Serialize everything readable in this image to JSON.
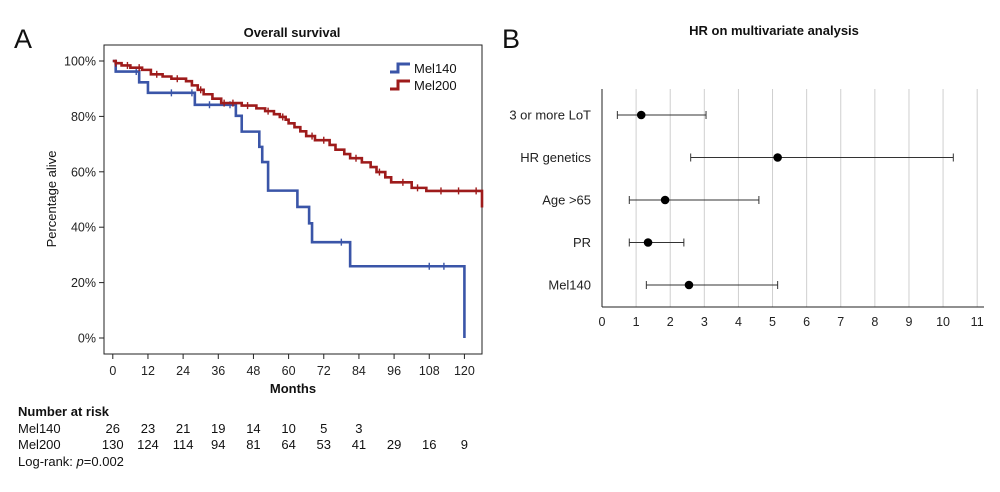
{
  "panels": {
    "a_letter": "A",
    "b_letter": "B"
  },
  "colors": {
    "mel140": "#3a55a8",
    "mel200": "#9e1b1b",
    "forest_point": "#000000",
    "grid": "#cfcfcf"
  },
  "chart_data": [
    {
      "type": "line",
      "step": true,
      "title": "Overall survival",
      "xlabel": "Months",
      "ylabel": "Percentage alive",
      "xlim": [
        -3,
        126
      ],
      "ylim": [
        0,
        100
      ],
      "xticks": [
        0,
        12,
        24,
        36,
        48,
        60,
        72,
        84,
        96,
        108,
        120
      ],
      "yticks": [
        0,
        20,
        40,
        60,
        80,
        100
      ],
      "ytick_labels": [
        "0%",
        "20%",
        "40%",
        "60%",
        "80%",
        "100%"
      ],
      "legend": "top-right",
      "series": [
        {
          "name": "Mel140",
          "color": "#3a55a8",
          "x": [
            0,
            1,
            9,
            12,
            28,
            42,
            44,
            50,
            51,
            53,
            63,
            67,
            68,
            81,
            120
          ],
          "y": [
            100,
            96.2,
            92.3,
            88.5,
            84.2,
            80.2,
            74.5,
            69,
            63.5,
            53.2,
            47.3,
            41.4,
            34.6,
            25.9,
            0
          ],
          "censor_x": [
            8,
            20,
            27,
            33,
            40,
            78,
            108,
            113
          ]
        },
        {
          "name": "Mel200",
          "color": "#9e1b1b",
          "x": [
            0,
            1,
            3,
            6,
            10,
            13,
            17,
            20,
            25,
            27,
            29,
            31,
            34,
            37,
            44,
            49,
            52,
            55,
            57,
            59,
            60,
            62,
            64,
            66,
            69,
            74,
            76,
            79,
            81,
            85,
            88,
            90,
            93,
            95,
            102,
            107,
            129
          ],
          "y": [
            100,
            99.2,
            98.4,
            97.6,
            96.8,
            95.2,
            94.4,
            93.6,
            92.7,
            91.2,
            89.6,
            88,
            86.4,
            84.8,
            83.9,
            82.9,
            81.9,
            80.8,
            79.8,
            78.8,
            77.5,
            76.1,
            74.6,
            72.9,
            71.4,
            69.7,
            68,
            66.4,
            64.9,
            63.4,
            61.7,
            59.9,
            58,
            56.2,
            54.2,
            53.1,
            47.1
          ],
          "censor_x": [
            1,
            5,
            9,
            15,
            22,
            30,
            38,
            41,
            46,
            53,
            58,
            68,
            72,
            83,
            91,
            99,
            104,
            112,
            118,
            124
          ]
        }
      ]
    },
    {
      "type": "scatter",
      "subtype": "forest",
      "title": "HR on multivariate analysis",
      "xlabel": "",
      "xlim": [
        0,
        11.2
      ],
      "xticks": [
        0,
        1,
        2,
        3,
        4,
        5,
        6,
        7,
        8,
        9,
        10,
        11
      ],
      "grid": true,
      "categories": [
        "3 or more LoT",
        "HR genetics",
        "Age >65",
        "PR",
        "Mel140"
      ],
      "values": [
        1.15,
        5.15,
        1.85,
        1.35,
        2.55
      ],
      "ci_low": [
        0.45,
        2.6,
        0.8,
        0.8,
        1.3
      ],
      "ci_high": [
        3.05,
        10.3,
        4.6,
        2.4,
        5.15
      ]
    }
  ],
  "risk_table": {
    "header": "Number at risk",
    "rows": [
      {
        "label": "Mel140",
        "values": [
          "26",
          "23",
          "21",
          "19",
          "14",
          "10",
          "5",
          "3"
        ]
      },
      {
        "label": "Mel200",
        "values": [
          "130",
          "124",
          "114",
          "94",
          "81",
          "64",
          "53",
          "41",
          "29",
          "16",
          "9"
        ]
      }
    ],
    "logrank_prefix": "Log-rank: ",
    "logrank_p": "p",
    "logrank_value": "=0.002"
  }
}
